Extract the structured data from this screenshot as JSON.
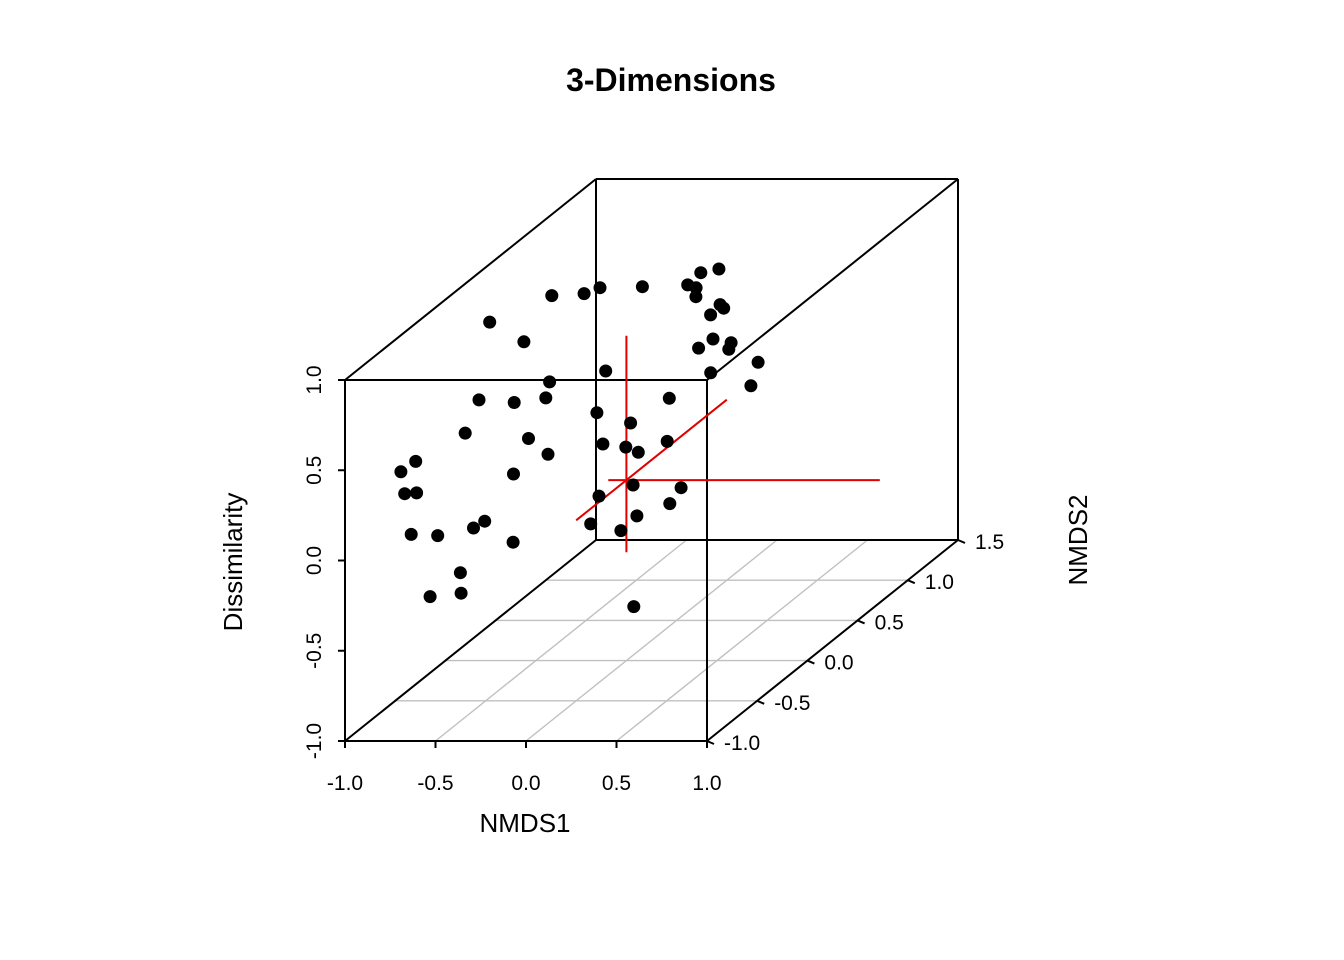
{
  "chart_data": {
    "type": "scatter",
    "title": "3-Dimensions",
    "xlabel": "NMDS1",
    "ylabel": "NMDS2",
    "zlabel": "Dissimilarity",
    "xlim": [
      -1.0,
      1.0
    ],
    "ylim": [
      -1.0,
      1.5
    ],
    "zlim": [
      -1.0,
      1.0
    ],
    "x_ticks": [
      "-1.0",
      "-0.5",
      "0.0",
      "0.5",
      "1.0"
    ],
    "y_ticks": [
      "-1.0",
      "-0.5",
      "0.0",
      "0.5",
      "1.0",
      "1.5"
    ],
    "z_ticks": [
      "-1.0",
      "-0.5",
      "0.0",
      "0.5",
      "1.0"
    ],
    "x_tick_values": [
      -1.0,
      -0.5,
      0.0,
      0.5,
      1.0
    ],
    "y_tick_values": [
      -1.0,
      -0.5,
      0.0,
      0.5,
      1.0,
      1.5
    ],
    "z_tick_values": [
      -1.0,
      -0.5,
      0.0,
      0.5,
      1.0
    ],
    "grid": true,
    "point_color": "#000000",
    "crosshair_color": "#e00000",
    "crosshair_center": [
      0.0,
      0.0,
      0.0
    ],
    "points": [
      {
        "x": -0.2,
        "y": 1.33,
        "z": 0.36
      },
      {
        "x": 0.2,
        "y": 0.38,
        "z": 0.98
      },
      {
        "x": 0.3,
        "y": 0.38,
        "z": 1.0
      },
      {
        "x": -0.15,
        "y": 0.43,
        "z": 0.88
      },
      {
        "x": 0.15,
        "y": 0.34,
        "z": 0.93
      },
      {
        "x": 0.19,
        "y": 0.35,
        "z": 0.86
      },
      {
        "x": 0.49,
        "y": 0.05,
        "z": 0.95
      },
      {
        "x": 0.44,
        "y": 0.25,
        "z": 0.65
      },
      {
        "x": 0.16,
        "y": 0.55,
        "z": 0.67
      },
      {
        "x": 0.36,
        "y": 0.07,
        "z": 0.7
      },
      {
        "x": 0.29,
        "y": 0.34,
        "z": 0.63
      },
      {
        "x": 0.51,
        "y": 0.1,
        "z": 0.68
      },
      {
        "x": 0.6,
        "y": 0.23,
        "z": 0.55
      },
      {
        "x": 0.41,
        "y": 0.1,
        "z": 0.55
      },
      {
        "x": -0.02,
        "y": 0.73,
        "z": 0.74
      },
      {
        "x": -0.34,
        "y": 0.35,
        "z": 0.91
      },
      {
        "x": -0.3,
        "y": 0.12,
        "z": 0.98
      },
      {
        "x": -0.44,
        "y": 0.05,
        "z": 1.0
      },
      {
        "x": -0.6,
        "y": -0.28,
        "z": 1.0
      },
      {
        "x": -0.4,
        "y": -0.3,
        "z": 0.9
      },
      {
        "x": -0.23,
        "y": -0.35,
        "z": 0.7
      },
      {
        "x": -0.07,
        "y": -0.08,
        "z": 0.64
      },
      {
        "x": -0.29,
        "y": -0.28,
        "z": 0.58
      },
      {
        "x": -0.47,
        "y": -0.27,
        "z": 0.55
      },
      {
        "x": -0.62,
        "y": -0.35,
        "z": 0.6
      },
      {
        "x": -0.63,
        "y": -0.47,
        "z": 0.47
      },
      {
        "x": -0.08,
        "y": -0.15,
        "z": 0.44
      },
      {
        "x": -0.28,
        "y": -0.47,
        "z": 0.44
      },
      {
        "x": -0.03,
        "y": -0.18,
        "z": 0.28
      },
      {
        "x": -0.2,
        "y": -0.42,
        "z": 0.33
      },
      {
        "x": -0.23,
        "y": -0.71,
        "z": 0.35
      },
      {
        "x": -0.71,
        "y": -0.81,
        "z": 0.29
      },
      {
        "x": -0.82,
        "y": -0.73,
        "z": 0.25
      },
      {
        "x": -0.77,
        "y": -0.71,
        "z": 0.42
      },
      {
        "x": -0.83,
        "y": -0.75,
        "z": 0.38
      },
      {
        "x": -0.35,
        "y": -0.78,
        "z": 0.12
      },
      {
        "x": -0.29,
        "y": -1.0,
        "z": 0.18
      },
      {
        "x": -0.56,
        "y": -0.87,
        "z": 0.08
      },
      {
        "x": -0.69,
        "y": -0.9,
        "z": 0.1
      },
      {
        "x": -0.21,
        "y": -0.75,
        "z": -0.01
      },
      {
        "x": -0.39,
        "y": -0.95,
        "z": -0.09
      },
      {
        "x": -0.53,
        "y": -1.0,
        "z": -0.2
      },
      {
        "x": -0.32,
        "y": -1.07,
        "z": -0.15
      },
      {
        "x": 0.28,
        "y": -0.4,
        "z": -0.02
      },
      {
        "x": 0.32,
        "y": -0.51,
        "z": 0.2
      },
      {
        "x": 0.33,
        "y": -0.65,
        "z": 0.01
      },
      {
        "x": 0.24,
        "y": 0.0,
        "z": -0.13
      },
      {
        "x": 0.08,
        "y": -0.5,
        "z": -0.02
      },
      {
        "x": 0.38,
        "y": -0.14,
        "z": 0.02
      },
      {
        "x": 0.27,
        "y": -0.08,
        "z": 0.25
      },
      {
        "x": 0.37,
        "y": -0.24,
        "z": 0.56
      },
      {
        "x": 0.31,
        "y": -0.44,
        "z": 0.35
      },
      {
        "x": 0.22,
        "y": -0.67,
        "z": 0.21
      },
      {
        "x": 0.13,
        "y": -0.24,
        "z": 0.29
      },
      {
        "x": 0.09,
        "y": -0.12,
        "z": 0.37
      },
      {
        "x": 0.61,
        "y": 0.14,
        "z": 0.46
      },
      {
        "x": 0.44,
        "y": -0.72,
        "z": -0.38
      }
    ]
  }
}
